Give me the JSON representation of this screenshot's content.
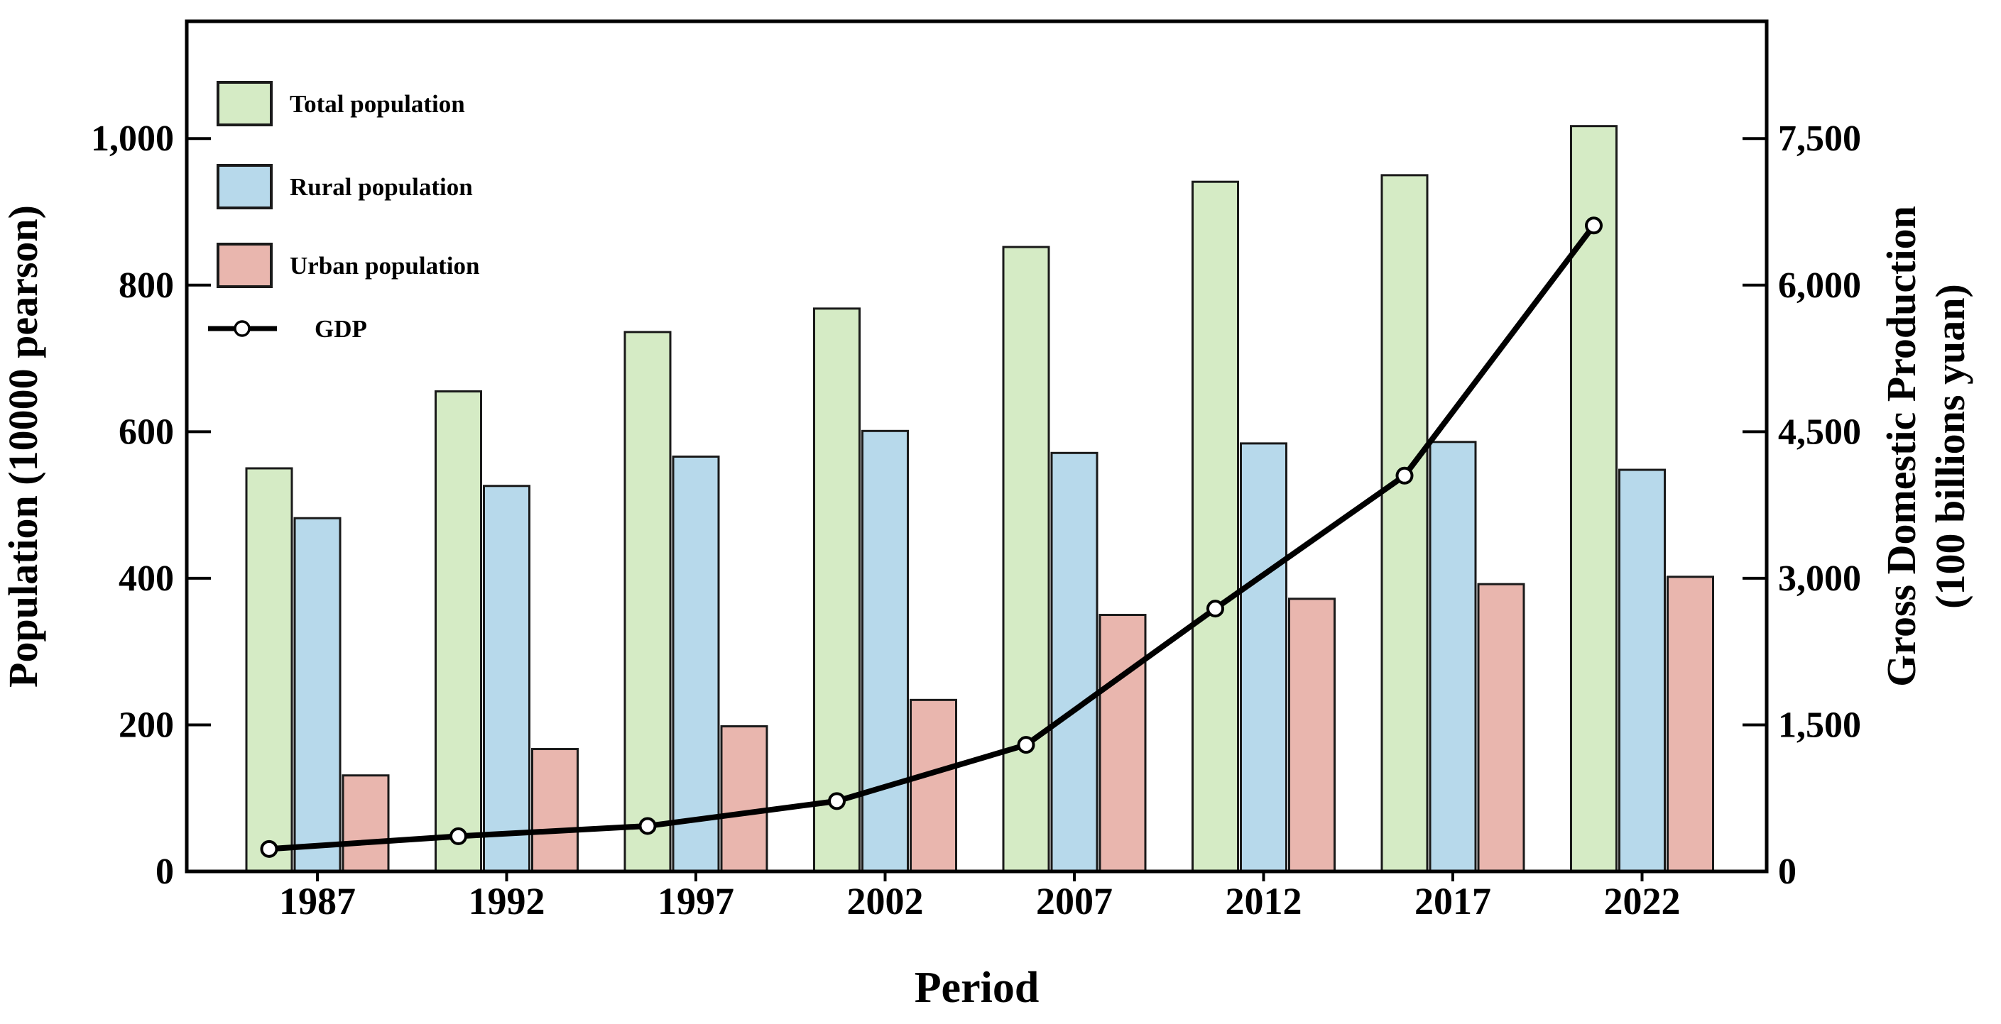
{
  "figure": {
    "background": "#ffffff",
    "frame_color": "#000000"
  },
  "chart_data": {
    "type": "bar",
    "subtype": "grouped-bars-with-line-overlay",
    "categories": [
      "1987",
      "1992",
      "1997",
      "2002",
      "2007",
      "2012",
      "2017",
      "2022"
    ],
    "series": [
      {
        "name": "Total population",
        "type": "bar",
        "axis": "left",
        "color": "#d5ebc5",
        "values": [
          550,
          655,
          736,
          768,
          852,
          941,
          950,
          1017
        ]
      },
      {
        "name": "Rural population",
        "type": "bar",
        "axis": "left",
        "color": "#b7d9eb",
        "values": [
          482,
          526,
          566,
          601,
          571,
          584,
          586,
          548
        ]
      },
      {
        "name": "Urban population",
        "type": "bar",
        "axis": "left",
        "color": "#e9b6ae",
        "values": [
          131,
          167,
          198,
          234,
          350,
          372,
          392,
          402
        ]
      },
      {
        "name": "GDP",
        "type": "line",
        "axis": "right",
        "color": "#000000",
        "marker": "open-circle",
        "values": [
          230,
          360,
          465,
          720,
          1295,
          2690,
          4050,
          6610
        ]
      }
    ],
    "xlabel": "Period",
    "ylabel_left": "Population (10000 pearson)",
    "ylabel_right_line1": "Gross Domestic Production",
    "ylabel_right_line2": "(100 billions yuan)",
    "left_axis": {
      "min": 0,
      "max": 1160,
      "ticks": [
        0,
        200,
        400,
        600,
        800,
        1000
      ],
      "tick_labels": [
        "0",
        "200",
        "400",
        "600",
        "800",
        "1,000"
      ]
    },
    "right_axis": {
      "min": 0,
      "max": 8700,
      "ticks": [
        0,
        1500,
        3000,
        4500,
        6000,
        7500
      ],
      "tick_labels": [
        "0",
        "1,500",
        "3,000",
        "4,500",
        "6,000",
        "7,500"
      ]
    },
    "grid": false,
    "legend_position": "upper-left",
    "bar_edge_color": "#1a1a1a",
    "line_color": "#000000",
    "marker_fill": "#ffffff"
  }
}
